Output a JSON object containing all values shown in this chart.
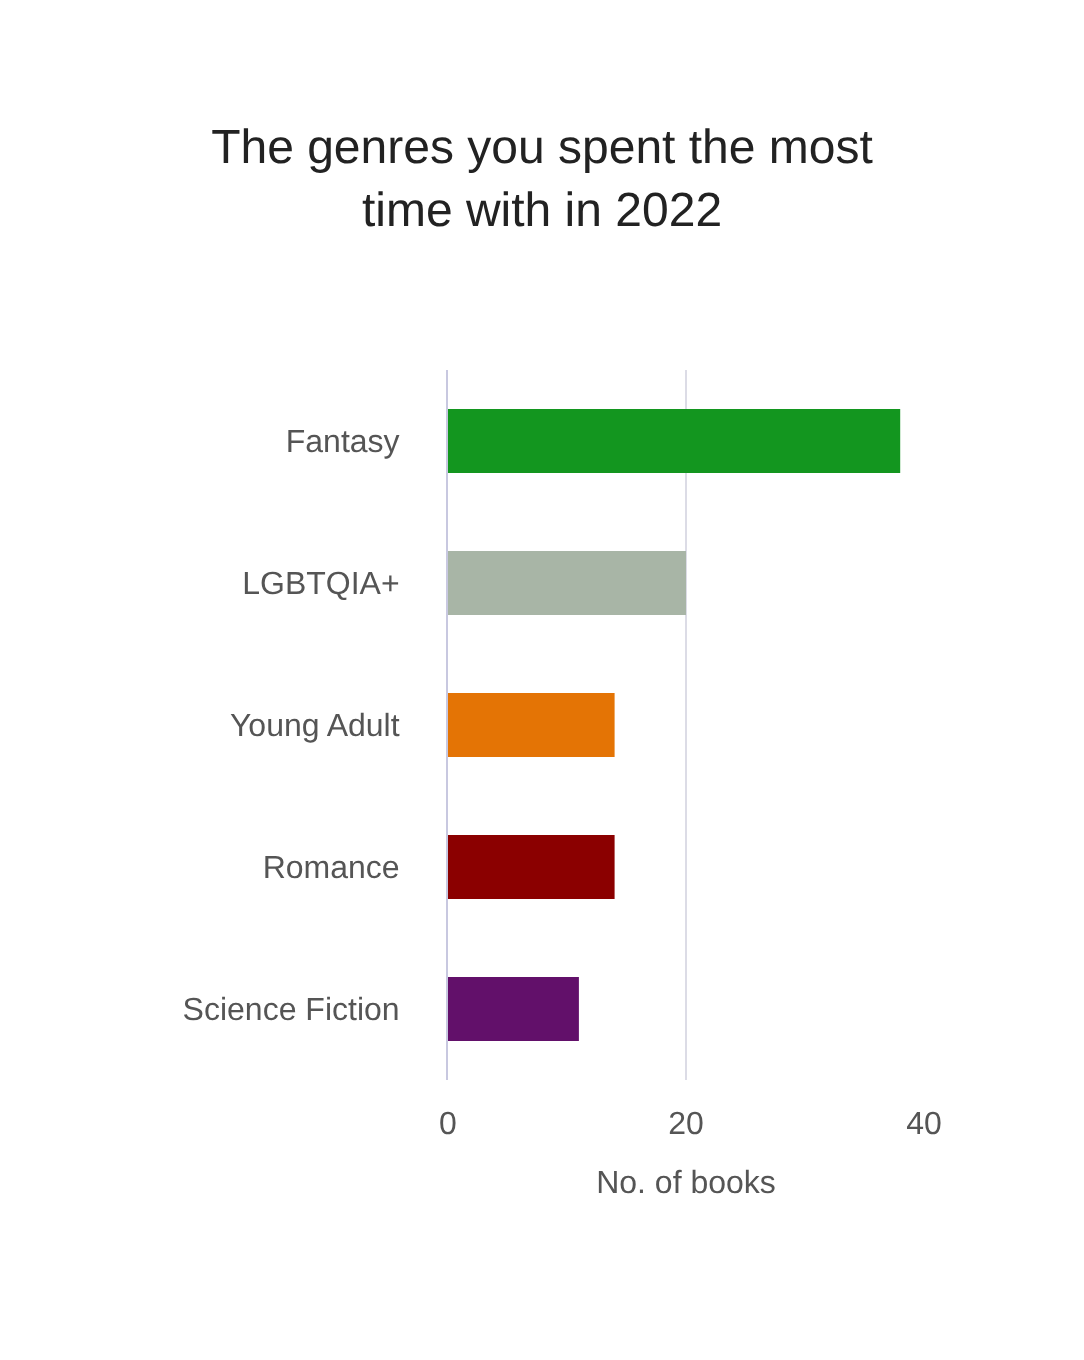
{
  "chart_data": {
    "type": "bar",
    "orientation": "horizontal",
    "title": "The genres you spent the most time with in 2022",
    "xlabel": "No. of books",
    "categories": [
      "Fantasy",
      "LGBTQIA+",
      "Young Adult",
      "Romance",
      "Science Fiction"
    ],
    "values": [
      38,
      20,
      14,
      14,
      11
    ],
    "colors": [
      "#13961f",
      "#a8b5a6",
      "#e47405",
      "#8b0000",
      "#62106a"
    ],
    "xlim": [
      0,
      40
    ],
    "xticks": [
      0,
      20,
      40
    ],
    "grid": "x"
  }
}
